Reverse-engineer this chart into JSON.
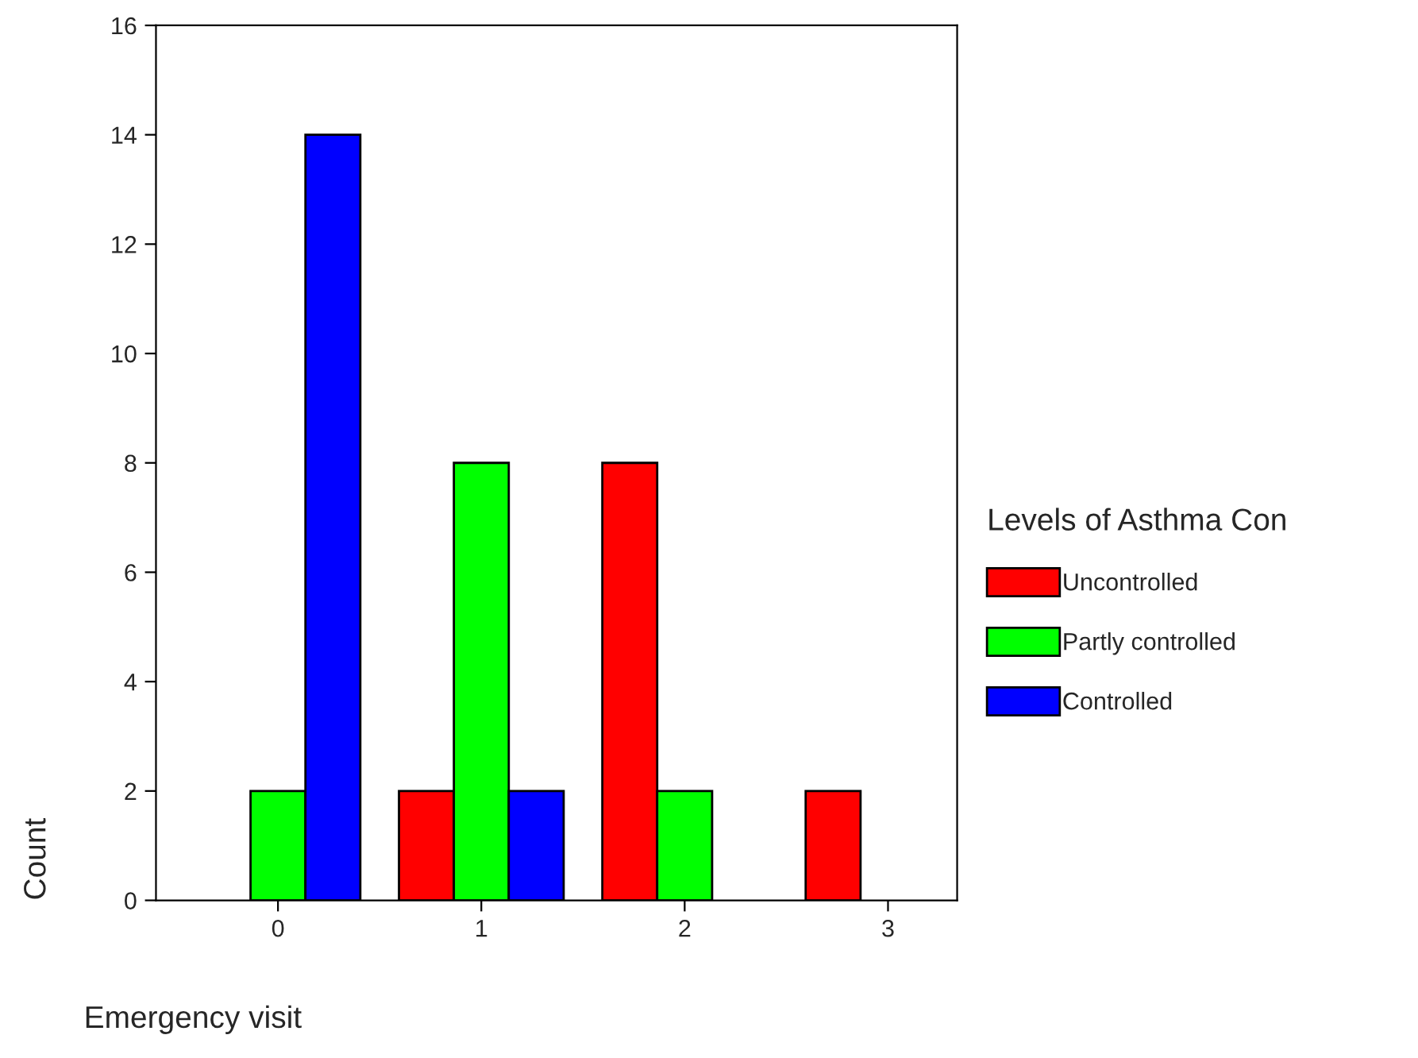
{
  "chart_data": {
    "type": "bar",
    "xlabel": "Emergency visit",
    "ylabel": "Count",
    "legend_title": "Levels of Asthma Con",
    "categories": [
      "0",
      "1",
      "2",
      "3"
    ],
    "series": [
      {
        "name": "Uncontrolled",
        "color": "#ff0000",
        "values": [
          null,
          2,
          8,
          2
        ]
      },
      {
        "name": "Partly controlled",
        "color": "#00ff00",
        "values": [
          2,
          8,
          2,
          null
        ]
      },
      {
        "name": "Controlled",
        "color": "#0000ff",
        "values": [
          14,
          2,
          null,
          null
        ]
      }
    ],
    "ylim": [
      0,
      16
    ],
    "yticks": [
      0,
      2,
      4,
      6,
      8,
      10,
      12,
      14,
      16
    ],
    "grid": false,
    "legend": "right"
  }
}
